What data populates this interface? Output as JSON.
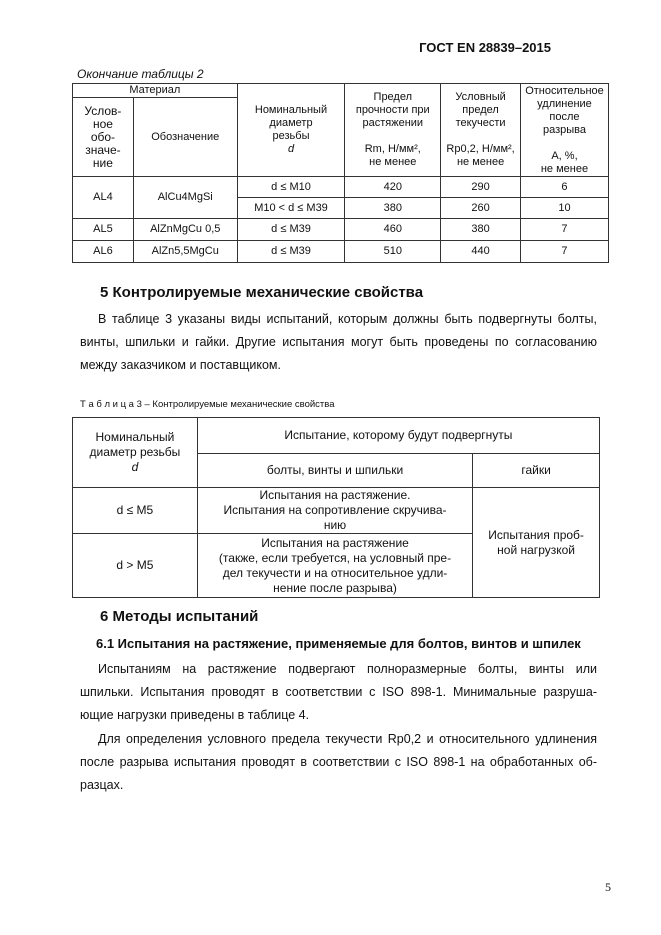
{
  "header": "ГОСТ EN 28839–2015",
  "table2": {
    "caption": "Окончание таблицы 2",
    "group_header": "Материал",
    "headers": [
      "Услов-ное обо-значе-ние",
      "Обозначение",
      "Номинальный диаметр резьбы d",
      "Предел прочности при растяжении Rm, Н/мм², не менее",
      "Условный предел текучести Rp0,2, Н/мм², не менее",
      "Относительное удлинение после разрыва A, %, не менее"
    ],
    "h_cond": [
      "Услов-",
      "ное",
      "обо-",
      "значе-",
      "ние"
    ],
    "h_nom": [
      "Номинальный",
      "диаметр",
      "резьбы",
      "d"
    ],
    "h_rm": [
      "Предел",
      "прочности при",
      "растяжении",
      "Rm, Н/мм²,",
      "не менее"
    ],
    "h_rp": [
      "Условный",
      "предел",
      "текучести",
      "Rp0,2, Н/мм²,",
      "не менее"
    ],
    "h_a": [
      "Относительное",
      "удлинение после",
      "разрыва",
      "A, %,",
      "не менее"
    ],
    "rows": [
      {
        "code": "AL4",
        "name": "AlCu4MgSi",
        "d": "d ≤ M10",
        "rm": "420",
        "rp": "290",
        "a": "6"
      },
      {
        "d": "M10 < d ≤ M39",
        "rm": "380",
        "rp": "260",
        "a": "10"
      },
      {
        "code": "AL5",
        "name": "AlZnMgCu 0,5",
        "d": "d ≤ M39",
        "rm": "460",
        "rp": "380",
        "a": "7"
      },
      {
        "code": "AL6",
        "name": "AlZn5,5MgCu",
        "d": "d ≤ M39",
        "rm": "510",
        "rp": "440",
        "a": "7"
      }
    ]
  },
  "section5": {
    "title": "5 Контролируемые механические свойства",
    "text": "В таблице 3 указаны виды испытаний, которым должны быть подвергнуты болты, винты, шпильки и гайки.  Другие испытания могут быть проведены по согласованию между заказчиком и поставщиком."
  },
  "table3": {
    "caption": "Т а б л и ц а 3 – Контролируемые механические свойства",
    "h_nom": [
      "Номинальный",
      "диаметр резьбы",
      "d"
    ],
    "h_test": "Испытание, которому будут подвергнуты",
    "h_bolts": "болты, винты и шпильки",
    "h_nuts": "гайки",
    "rows": [
      {
        "d": "d ≤ M5",
        "bolts": [
          "Испытания на растяжение.",
          "Испытания на сопротивление скручива-",
          "нию"
        ]
      },
      {
        "d": "d > M5",
        "bolts": [
          "Испытания на растяжение",
          "(также, если требуется, на условный пре-",
          "дел текучести и на относительное удли-",
          "нение после разрыва)"
        ]
      }
    ],
    "nuts": [
      "Испытания проб-",
      "ной нагрузкой"
    ]
  },
  "section6": {
    "title": "6 Методы испытаний",
    "sub": "6.1 Испытания на растяжение, применяемые для болтов, винтов и шпилек",
    "p1": "Испытаниям на растяжение подвергают полноразмерные болты, винты или шпильки. Испытания проводят в соответствии с ISO 898-1. Минимальные разруша-ющие нагрузки приведены в таблице 4.",
    "p2": "Для определения условного предела текучести Rp0,2 и относительного удлинения после разрыва испытания проводят в соответствии с ISO 898-1 на обработанных об-разцах."
  },
  "page_number": "5"
}
